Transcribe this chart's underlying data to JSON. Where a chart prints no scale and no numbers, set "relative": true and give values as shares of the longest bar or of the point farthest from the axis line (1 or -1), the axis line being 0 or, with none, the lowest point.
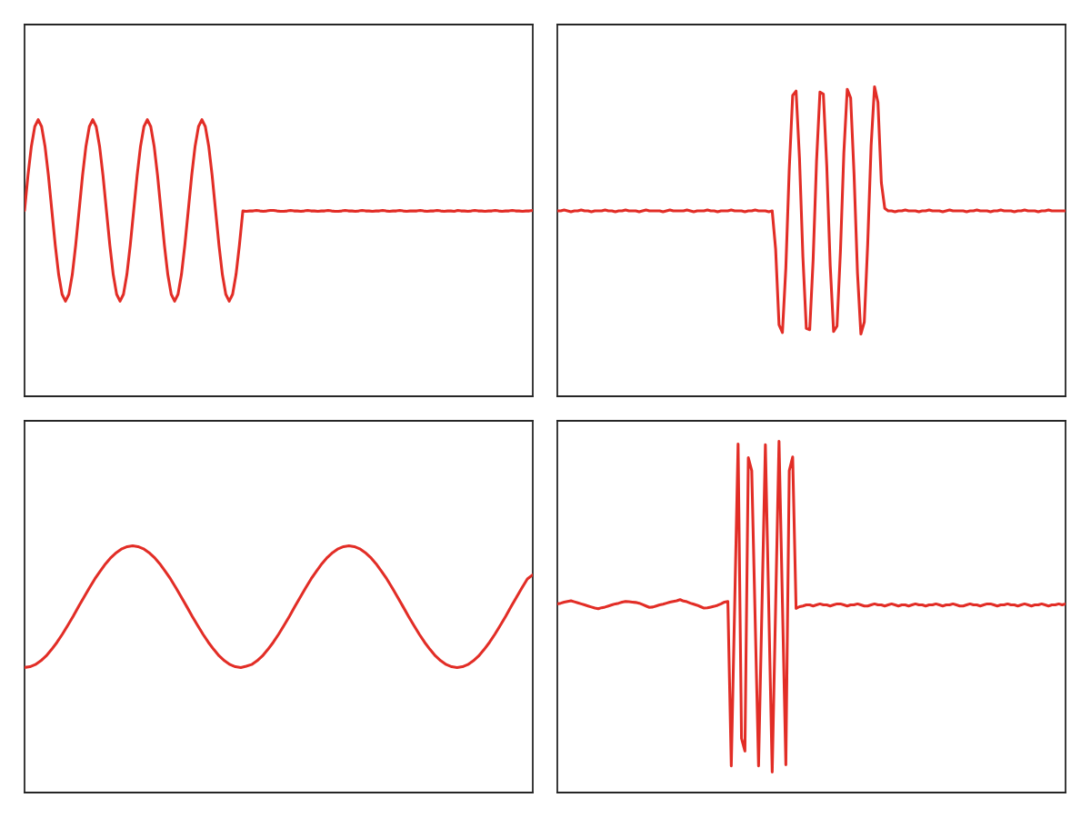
{
  "chart_data": [
    {
      "type": "line",
      "relative": true,
      "tick_labels": false,
      "categories": [
        null,
        null,
        null,
        null,
        null,
        null,
        null,
        null,
        null,
        null,
        null,
        null,
        null,
        null,
        null,
        null,
        null,
        null,
        null,
        null,
        null,
        null,
        null,
        null,
        null,
        null,
        null,
        null,
        null,
        null,
        null,
        null,
        null,
        null,
        null,
        null,
        null,
        null,
        null,
        null,
        null,
        null,
        null,
        null,
        null,
        null,
        null,
        null,
        null,
        null,
        null,
        null,
        null,
        null,
        null,
        null,
        null,
        null,
        null,
        null,
        null,
        null,
        null,
        null,
        null,
        null,
        null,
        null,
        null,
        null,
        null,
        null,
        null,
        null,
        null,
        null,
        null,
        null,
        null,
        null,
        null,
        null,
        null,
        null,
        null,
        null,
        null,
        null,
        null,
        null,
        null,
        null,
        null,
        null,
        null,
        null,
        null,
        null,
        null,
        null,
        null,
        null,
        null,
        null,
        null,
        null,
        null,
        null,
        null,
        null,
        null,
        null,
        null,
        null,
        null,
        null,
        null,
        null,
        null,
        null,
        null,
        null,
        null,
        null,
        null,
        null,
        null,
        null,
        null,
        null,
        null,
        null,
        null,
        null,
        null,
        null,
        null,
        null,
        null,
        null,
        null,
        null,
        null,
        null,
        null,
        null,
        null,
        null,
        null,
        null
      ],
      "series": [
        {
          "color": "#e22d26",
          "values": [
            0.672,
            0.798,
            0.904,
            0.975,
            1.0,
            0.975,
            0.904,
            0.798,
            0.672,
            0.547,
            0.44,
            0.369,
            0.344,
            0.369,
            0.44,
            0.547,
            0.672,
            0.798,
            0.904,
            0.975,
            1.0,
            0.975,
            0.904,
            0.798,
            0.672,
            0.547,
            0.44,
            0.369,
            0.344,
            0.369,
            0.44,
            0.547,
            0.672,
            0.798,
            0.904,
            0.975,
            1.0,
            0.975,
            0.904,
            0.798,
            0.672,
            0.547,
            0.44,
            0.369,
            0.344,
            0.369,
            0.44,
            0.547,
            0.672,
            0.798,
            0.904,
            0.975,
            1.0,
            0.975,
            0.904,
            0.798,
            0.672,
            0.547,
            0.44,
            0.369,
            0.344,
            0.369,
            0.44,
            0.547,
            0.67,
            0.669,
            0.67,
            0.67,
            0.672,
            0.67,
            0.669,
            0.67,
            0.672,
            0.672,
            0.67,
            0.669,
            0.669,
            0.67,
            0.672,
            0.67,
            0.67,
            0.669,
            0.67,
            0.672,
            0.67,
            0.67,
            0.669,
            0.67,
            0.67,
            0.672,
            0.67,
            0.669,
            0.669,
            0.67,
            0.672,
            0.67,
            0.67,
            0.669,
            0.67,
            0.672,
            0.67,
            0.67,
            0.669,
            0.67,
            0.67,
            0.672,
            0.67,
            0.669,
            0.67,
            0.67,
            0.672,
            0.67,
            0.669,
            0.67,
            0.67,
            0.67,
            0.672,
            0.67,
            0.669,
            0.67,
            0.67,
            0.672,
            0.67,
            0.669,
            0.67,
            0.67,
            0.669,
            0.672,
            0.67,
            0.67,
            0.669,
            0.67,
            0.672,
            0.67,
            0.67,
            0.669,
            0.67,
            0.67,
            0.672,
            0.67,
            0.669,
            0.67,
            0.67,
            0.672,
            0.67,
            0.67,
            0.669,
            0.67,
            0.67,
            0.672
          ]
        }
      ]
    },
    {
      "type": "line",
      "relative": true,
      "tick_labels": false,
      "categories": [
        null,
        null,
        null,
        null,
        null,
        null,
        null,
        null,
        null,
        null,
        null,
        null,
        null,
        null,
        null,
        null,
        null,
        null,
        null,
        null,
        null,
        null,
        null,
        null,
        null,
        null,
        null,
        null,
        null,
        null,
        null,
        null,
        null,
        null,
        null,
        null,
        null,
        null,
        null,
        null,
        null,
        null,
        null,
        null,
        null,
        null,
        null,
        null,
        null,
        null,
        null,
        null,
        null,
        null,
        null,
        null,
        null,
        null,
        null,
        null,
        null,
        null,
        null,
        null,
        null,
        null,
        null,
        null,
        null,
        null,
        null,
        null,
        null,
        null,
        null,
        null,
        null,
        null,
        null,
        null,
        null,
        null,
        null,
        null,
        null,
        null,
        null,
        null,
        null,
        null,
        null,
        null,
        null,
        null,
        null,
        null,
        null,
        null,
        null,
        null,
        null,
        null,
        null,
        null,
        null,
        null,
        null,
        null,
        null,
        null,
        null,
        null,
        null,
        null,
        null,
        null,
        null,
        null,
        null,
        null,
        null,
        null,
        null,
        null,
        null,
        null,
        null,
        null,
        null,
        null,
        null,
        null,
        null,
        null,
        null,
        null,
        null,
        null,
        null,
        null,
        null,
        null,
        null,
        null,
        null,
        null,
        null,
        null,
        null,
        null
      ],
      "series": [
        {
          "color": "#e22d26",
          "values": [
            0.599,
            0.599,
            0.602,
            0.599,
            0.596,
            0.599,
            0.599,
            0.602,
            0.599,
            0.599,
            0.596,
            0.599,
            0.599,
            0.599,
            0.602,
            0.599,
            0.599,
            0.596,
            0.599,
            0.599,
            0.602,
            0.599,
            0.599,
            0.599,
            0.596,
            0.599,
            0.602,
            0.599,
            0.599,
            0.599,
            0.599,
            0.596,
            0.599,
            0.602,
            0.599,
            0.599,
            0.599,
            0.599,
            0.602,
            0.599,
            0.596,
            0.599,
            0.599,
            0.599,
            0.602,
            0.599,
            0.599,
            0.596,
            0.599,
            0.599,
            0.599,
            0.602,
            0.599,
            0.599,
            0.599,
            0.596,
            0.599,
            0.599,
            0.602,
            0.599,
            0.599,
            0.599,
            0.596,
            0.599,
            0.476,
            0.231,
            0.206,
            0.415,
            0.735,
            0.972,
            0.986,
            0.769,
            0.45,
            0.219,
            0.215,
            0.441,
            0.76,
            0.983,
            0.976,
            0.743,
            0.424,
            0.209,
            0.227,
            0.467,
            0.785,
            0.992,
            0.964,
            0.717,
            0.399,
            0.201,
            0.24,
            0.493,
            0.81,
            1.0,
            0.95,
            0.69,
            0.607,
            0.599,
            0.599,
            0.596,
            0.599,
            0.599,
            0.602,
            0.599,
            0.599,
            0.599,
            0.596,
            0.599,
            0.599,
            0.602,
            0.599,
            0.599,
            0.599,
            0.596,
            0.599,
            0.602,
            0.599,
            0.599,
            0.599,
            0.599,
            0.596,
            0.599,
            0.599,
            0.602,
            0.599,
            0.599,
            0.599,
            0.596,
            0.599,
            0.599,
            0.602,
            0.599,
            0.599,
            0.599,
            0.596,
            0.599,
            0.599,
            0.602,
            0.599,
            0.599,
            0.599,
            0.596,
            0.599,
            0.599,
            0.602,
            0.599,
            0.599,
            0.599,
            0.599,
            0.599
          ]
        }
      ]
    },
    {
      "type": "line",
      "relative": true,
      "tick_labels": false,
      "categories": [
        null,
        null,
        null,
        null,
        null,
        null,
        null,
        null,
        null,
        null,
        null,
        null,
        null,
        null,
        null,
        null,
        null,
        null,
        null,
        null,
        null,
        null,
        null,
        null,
        null,
        null,
        null,
        null,
        null,
        null,
        null,
        null,
        null,
        null,
        null,
        null,
        null,
        null,
        null,
        null,
        null,
        null,
        null,
        null,
        null,
        null,
        null,
        null,
        null,
        null,
        null,
        null,
        null,
        null,
        null,
        null,
        null,
        null,
        null,
        null,
        null,
        null,
        null,
        null,
        null,
        null,
        null,
        null,
        null,
        null,
        null,
        null,
        null,
        null,
        null,
        null,
        null,
        null,
        null,
        null,
        null,
        null,
        null,
        null,
        null,
        null,
        null,
        null,
        null,
        null,
        null,
        null,
        null,
        null,
        null
      ],
      "series": [
        {
          "color": "#e22d26",
          "values": [
            0.507,
            0.51,
            0.519,
            0.534,
            0.554,
            0.58,
            0.609,
            0.642,
            0.678,
            0.715,
            0.754,
            0.792,
            0.83,
            0.866,
            0.898,
            0.928,
            0.953,
            0.973,
            0.988,
            0.997,
            1.0,
            0.997,
            0.988,
            0.973,
            0.953,
            0.928,
            0.898,
            0.866,
            0.83,
            0.792,
            0.754,
            0.715,
            0.678,
            0.642,
            0.609,
            0.58,
            0.554,
            0.534,
            0.519,
            0.51,
            0.507,
            0.512,
            0.519,
            0.534,
            0.554,
            0.58,
            0.609,
            0.642,
            0.678,
            0.715,
            0.754,
            0.792,
            0.83,
            0.866,
            0.898,
            0.928,
            0.953,
            0.973,
            0.988,
            0.997,
            1.0,
            0.997,
            0.988,
            0.973,
            0.953,
            0.928,
            0.898,
            0.866,
            0.83,
            0.792,
            0.754,
            0.715,
            0.678,
            0.642,
            0.609,
            0.58,
            0.554,
            0.534,
            0.519,
            0.51,
            0.507,
            0.51,
            0.519,
            0.534,
            0.554,
            0.58,
            0.609,
            0.642,
            0.678,
            0.715,
            0.754,
            0.792,
            0.83,
            0.866,
            0.883
          ]
        }
      ]
    },
    {
      "type": "line",
      "relative": true,
      "tick_labels": false,
      "categories": [
        null,
        null,
        null,
        null,
        null,
        null,
        null,
        null,
        null,
        null,
        null,
        null,
        null,
        null,
        null,
        null,
        null,
        null,
        null,
        null,
        null,
        null,
        null,
        null,
        null,
        null,
        null,
        null,
        null,
        null,
        null,
        null,
        null,
        null,
        null,
        null,
        null,
        null,
        null,
        null,
        null,
        null,
        null,
        null,
        null,
        null,
        null,
        null,
        null,
        null,
        null,
        null,
        null,
        null,
        null,
        null,
        null,
        null,
        null,
        null,
        null,
        null,
        null,
        null,
        null,
        null,
        null,
        null,
        null,
        null,
        null,
        null,
        null,
        null,
        null,
        null,
        null,
        null,
        null,
        null,
        null,
        null,
        null,
        null,
        null,
        null,
        null,
        null,
        null,
        null,
        null,
        null,
        null,
        null,
        null,
        null,
        null,
        null,
        null,
        null,
        null,
        null,
        null,
        null,
        null,
        null,
        null,
        null,
        null,
        null,
        null,
        null,
        null,
        null,
        null,
        null,
        null,
        null,
        null,
        null,
        null,
        null,
        null,
        null,
        null,
        null,
        null,
        null,
        null,
        null,
        null,
        null,
        null,
        null,
        null,
        null,
        null,
        null,
        null,
        null,
        null,
        null,
        null,
        null,
        null,
        null,
        null,
        null,
        null,
        null
      ],
      "series": [
        {
          "color": "#e22d26",
          "values": [
            0.537,
            0.539,
            0.542,
            0.544,
            0.546,
            0.543,
            0.54,
            0.537,
            0.534,
            0.531,
            0.528,
            0.525,
            0.523,
            0.526,
            0.528,
            0.531,
            0.534,
            0.537,
            0.539,
            0.542,
            0.544,
            0.543,
            0.542,
            0.541,
            0.539,
            0.535,
            0.531,
            0.527,
            0.528,
            0.531,
            0.534,
            0.536,
            0.539,
            0.542,
            0.544,
            0.546,
            0.549,
            0.545,
            0.543,
            0.539,
            0.536,
            0.533,
            0.529,
            0.525,
            0.526,
            0.528,
            0.53,
            0.533,
            0.537,
            0.542,
            0.544,
            0.076,
            0.534,
            0.992,
            0.154,
            0.118,
            0.953,
            0.916,
            0.495,
            0.076,
            0.531,
            0.99,
            0.524,
            0.058,
            0.529,
            1.0,
            0.539,
            0.079,
            0.916,
            0.955,
            0.524,
            0.529,
            0.531,
            0.534,
            0.534,
            0.531,
            0.534,
            0.537,
            0.534,
            0.534,
            0.531,
            0.534,
            0.537,
            0.537,
            0.534,
            0.531,
            0.534,
            0.534,
            0.537,
            0.534,
            0.531,
            0.531,
            0.534,
            0.537,
            0.534,
            0.534,
            0.531,
            0.534,
            0.537,
            0.534,
            0.531,
            0.534,
            0.534,
            0.531,
            0.534,
            0.537,
            0.534,
            0.534,
            0.531,
            0.534,
            0.534,
            0.537,
            0.534,
            0.531,
            0.534,
            0.534,
            0.537,
            0.534,
            0.531,
            0.531,
            0.534,
            0.537,
            0.534,
            0.534,
            0.531,
            0.534,
            0.537,
            0.537,
            0.534,
            0.531,
            0.534,
            0.534,
            0.537,
            0.534,
            0.534,
            0.531,
            0.534,
            0.537,
            0.534,
            0.531,
            0.534,
            0.534,
            0.537,
            0.534,
            0.531,
            0.534,
            0.534,
            0.537,
            0.534,
            0.537
          ]
        }
      ]
    }
  ]
}
